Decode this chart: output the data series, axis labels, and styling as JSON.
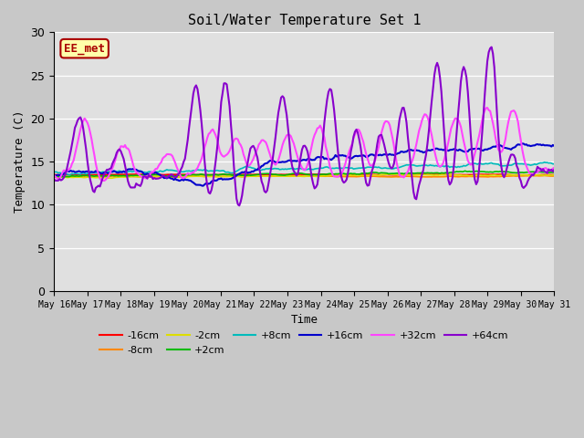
{
  "title": "Soil/Water Temperature Set 1",
  "xlabel": "Time",
  "ylabel": "Temperature (C)",
  "xlim": [
    0,
    15
  ],
  "ylim": [
    0,
    30
  ],
  "yticks": [
    0,
    5,
    10,
    15,
    20,
    25,
    30
  ],
  "xtick_labels": [
    "May 16",
    "May 17",
    "May 18",
    "May 19",
    "May 20",
    "May 21",
    "May 22",
    "May 23",
    "May 24",
    "May 25",
    "May 26",
    "May 27",
    "May 28",
    "May 29",
    "May 30",
    "May 31"
  ],
  "annotation_text": "EE_met",
  "annotation_bg": "#ffffaa",
  "annotation_border": "#aa0000",
  "series": {
    "-16cm": {
      "color": "#ff0000",
      "lw": 1.2
    },
    "-8cm": {
      "color": "#ff8800",
      "lw": 1.2
    },
    "-2cm": {
      "color": "#dddd00",
      "lw": 1.2
    },
    "+2cm": {
      "color": "#00bb00",
      "lw": 1.2
    },
    "+8cm": {
      "color": "#00bbbb",
      "lw": 1.2
    },
    "+16cm": {
      "color": "#0000cc",
      "lw": 1.5
    },
    "+32cm": {
      "color": "#ff44ff",
      "lw": 1.5
    },
    "+64cm": {
      "color": "#8800cc",
      "lw": 1.5
    }
  }
}
